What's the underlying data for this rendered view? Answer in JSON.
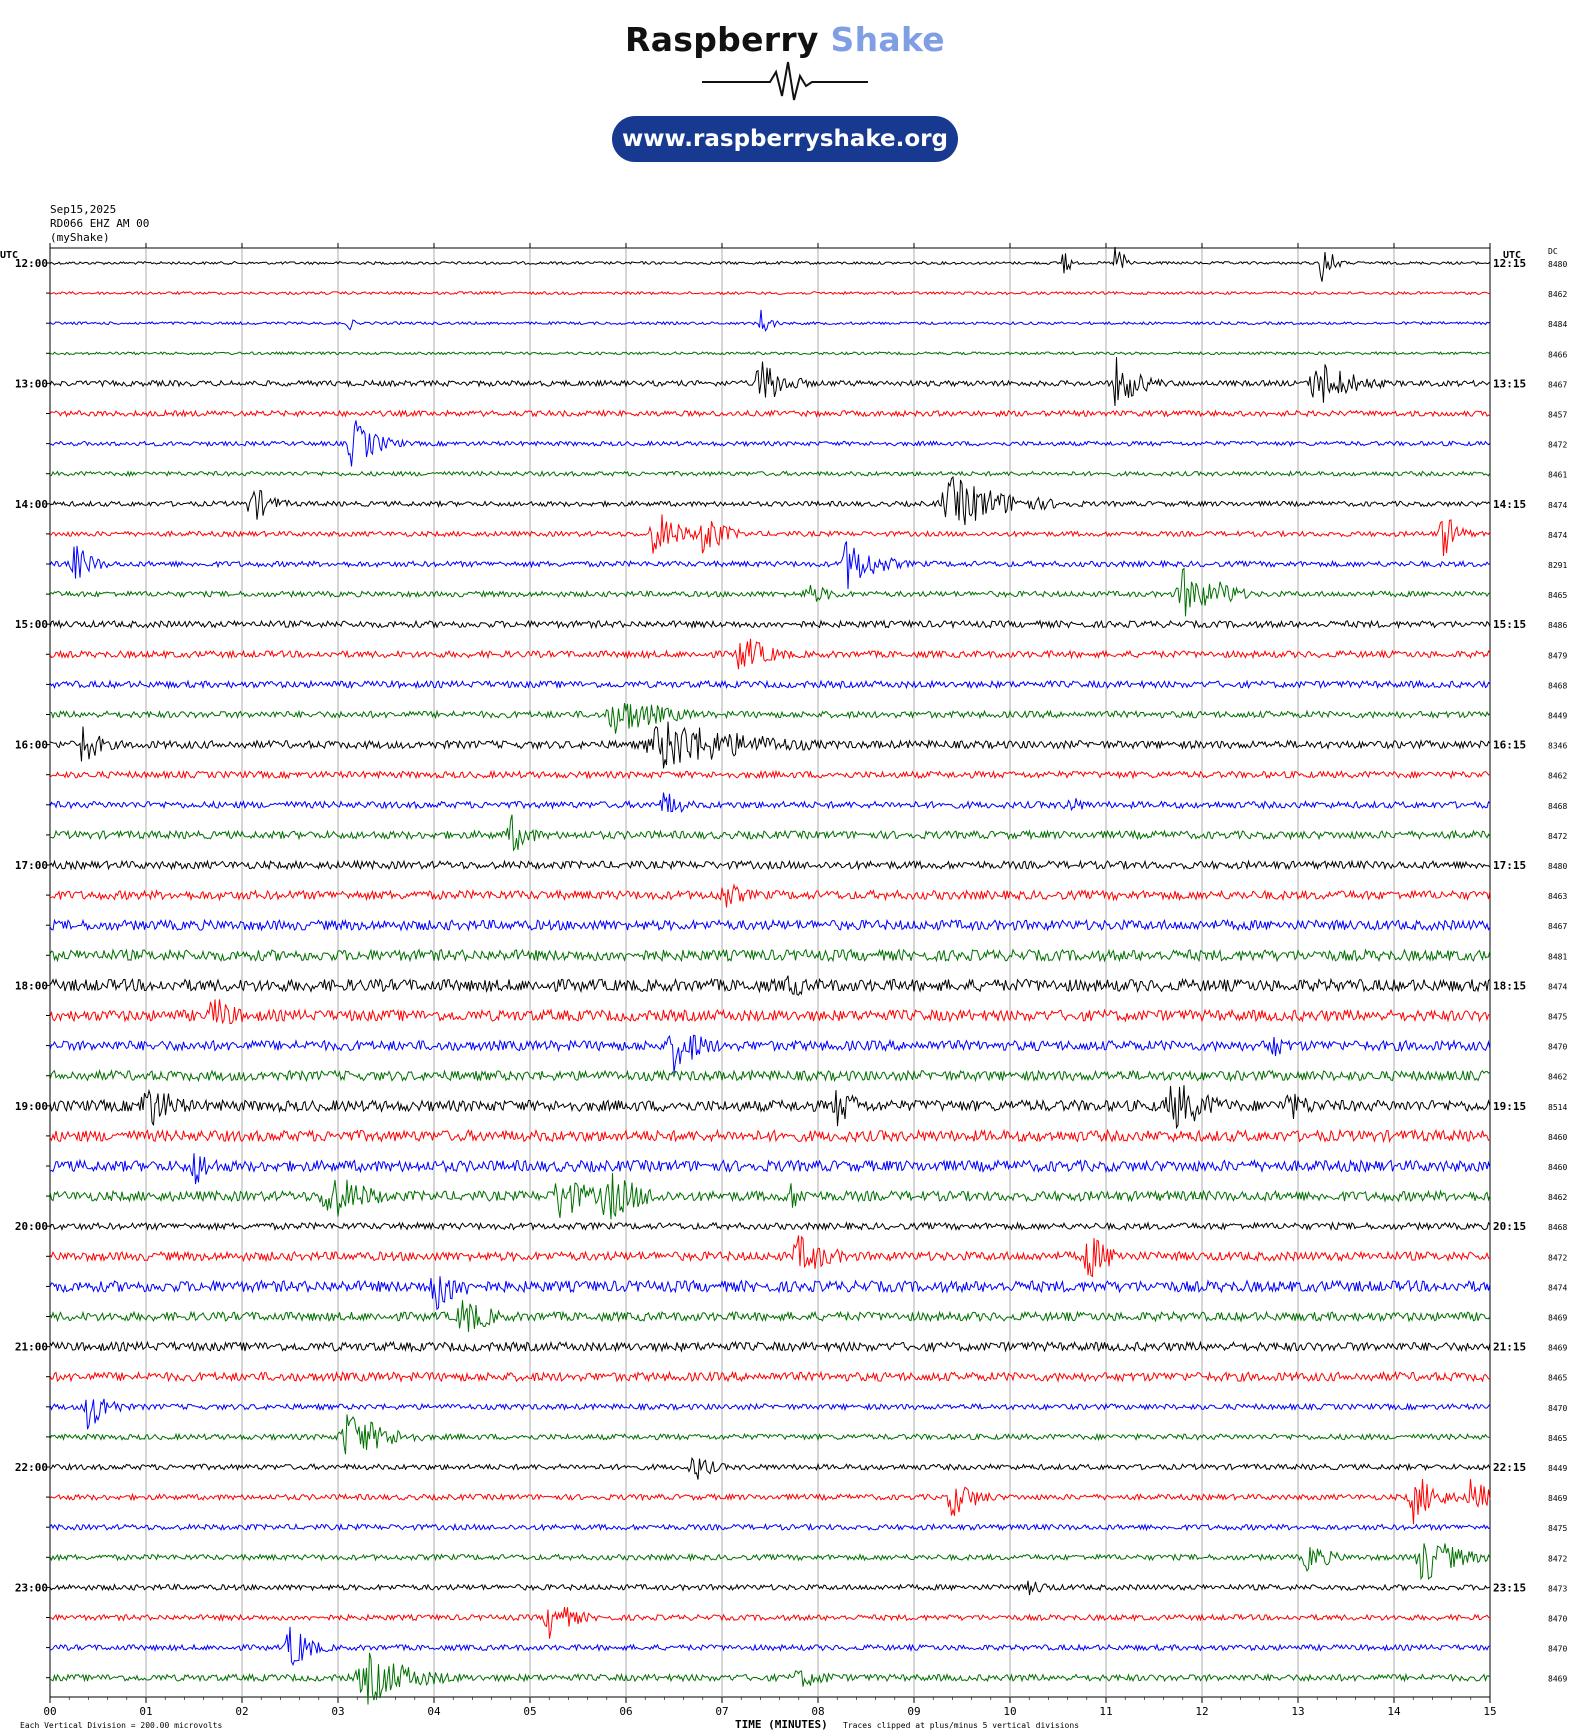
{
  "header": {
    "brand_word_1": "Raspberry",
    "brand_word_2": "Shake",
    "url": "www.raspberryshake.org",
    "brand_color": "#7f9ee3",
    "pill_color": "#17398f"
  },
  "meta": {
    "date": "Sep15,2025",
    "station": "RD066 EHZ AM 00",
    "source": "(myShake)"
  },
  "labels": {
    "left_unit": "UTC",
    "right_unit": "UTC",
    "dc_unit": "DC",
    "footer_left": "Each Vertical Division =  200.00 microvolts",
    "footer_center": "TIME (MINUTES)",
    "footer_right": "Traces clipped at plus/minus 5 vertical divisions"
  },
  "chart_data": {
    "type": "line",
    "xlabel": "TIME (MINUTES)",
    "xlim": [
      0,
      15
    ],
    "x_ticks": [
      "00",
      "01",
      "02",
      "03",
      "04",
      "05",
      "06",
      "07",
      "08",
      "09",
      "10",
      "11",
      "12",
      "13",
      "14",
      "15"
    ],
    "row_minutes": 15,
    "trace_colors": [
      "#000000",
      "#ff0000",
      "#0000ff",
      "#007000"
    ],
    "grid": true,
    "hour_labels_left": [
      "12:00",
      "13:00",
      "14:00",
      "15:00",
      "16:00",
      "17:00",
      "18:00",
      "19:00",
      "20:00",
      "21:00",
      "22:00",
      "23:00"
    ],
    "hour_labels_right": [
      "12:15",
      "13:15",
      "14:15",
      "15:15",
      "16:15",
      "17:15",
      "18:15",
      "19:15",
      "20:15",
      "21:15",
      "22:15",
      "23:15"
    ],
    "dc_offsets": [
      8480,
      8462,
      8484,
      8466,
      8467,
      8457,
      8472,
      8461,
      8474,
      8474,
      8291,
      8465,
      8486,
      8479,
      8468,
      8449,
      8346,
      8462,
      8468,
      8472,
      8480,
      8463,
      8467,
      8481,
      8474,
      8475,
      8470,
      8462,
      8514,
      8460,
      8460,
      8462,
      8468,
      8472,
      8474,
      8469,
      8469,
      8465,
      8470,
      8465,
      8449,
      8469,
      8475,
      8472,
      8473,
      8470,
      8470,
      8469
    ],
    "noise_level": [
      0.25,
      0.25,
      0.25,
      0.25,
      0.5,
      0.5,
      0.4,
      0.4,
      0.45,
      0.45,
      0.5,
      0.5,
      0.6,
      0.6,
      0.6,
      0.6,
      0.7,
      0.6,
      0.6,
      0.7,
      0.7,
      0.8,
      0.9,
      1.0,
      1.1,
      1.0,
      0.9,
      0.9,
      1.0,
      1.0,
      1.0,
      0.9,
      0.6,
      0.8,
      1.0,
      0.8,
      0.8,
      0.8,
      0.5,
      0.5,
      0.5,
      0.5,
      0.5,
      0.5,
      0.5,
      0.5,
      0.5,
      0.6
    ],
    "events": [
      {
        "row": 0,
        "minute": 10.55,
        "amplitude": 8,
        "duration": 0.04
      },
      {
        "row": 0,
        "minute": 11.1,
        "amplitude": 5,
        "duration": 0.08
      },
      {
        "row": 0,
        "minute": 13.25,
        "amplitude": 5,
        "duration": 0.1
      },
      {
        "row": 2,
        "minute": 7.4,
        "amplitude": 3,
        "duration": 0.1
      },
      {
        "row": 2,
        "minute": 3.1,
        "amplitude": 2,
        "duration": 0.05
      },
      {
        "row": 4,
        "minute": 7.4,
        "amplitude": 5,
        "duration": 0.25
      },
      {
        "row": 4,
        "minute": 11.1,
        "amplitude": 5,
        "duration": 0.25
      },
      {
        "row": 4,
        "minute": 13.2,
        "amplitude": 5,
        "duration": 0.35
      },
      {
        "row": 6,
        "minute": 3.15,
        "amplitude": 5,
        "duration": 0.25
      },
      {
        "row": 8,
        "minute": 2.1,
        "amplitude": 4,
        "duration": 0.2
      },
      {
        "row": 8,
        "minute": 9.4,
        "amplitude": 5,
        "duration": 0.6
      },
      {
        "row": 9,
        "minute": 6.3,
        "amplitude": 5,
        "duration": 0.25
      },
      {
        "row": 9,
        "minute": 6.8,
        "amplitude": 5,
        "duration": 0.2
      },
      {
        "row": 9,
        "minute": 14.5,
        "amplitude": 5,
        "duration": 0.15
      },
      {
        "row": 10,
        "minute": 0.25,
        "amplitude": 4,
        "duration": 0.2
      },
      {
        "row": 10,
        "minute": 8.3,
        "amplitude": 5,
        "duration": 0.3
      },
      {
        "row": 11,
        "minute": 11.8,
        "amplitude": 5,
        "duration": 0.3
      },
      {
        "row": 11,
        "minute": 12.2,
        "amplitude": 3,
        "duration": 0.2
      },
      {
        "row": 11,
        "minute": 7.9,
        "amplitude": 2,
        "duration": 0.3
      },
      {
        "row": 13,
        "minute": 7.2,
        "amplitude": 4,
        "duration": 0.3
      },
      {
        "row": 15,
        "minute": 5.9,
        "amplitude": 4,
        "duration": 0.5
      },
      {
        "row": 16,
        "minute": 0.3,
        "amplitude": 5,
        "duration": 0.2
      },
      {
        "row": 16,
        "minute": 6.4,
        "amplitude": 5,
        "duration": 0.9
      },
      {
        "row": 18,
        "minute": 10.6,
        "amplitude": 2,
        "duration": 0.2
      },
      {
        "row": 18,
        "minute": 6.4,
        "amplitude": 3,
        "duration": 0.2
      },
      {
        "row": 19,
        "minute": 4.8,
        "amplitude": 4,
        "duration": 0.2
      },
      {
        "row": 21,
        "minute": 7.0,
        "amplitude": 3,
        "duration": 0.25
      },
      {
        "row": 24,
        "minute": 7.7,
        "amplitude": 3,
        "duration": 0.2
      },
      {
        "row": 25,
        "minute": 1.7,
        "amplitude": 4,
        "duration": 0.25
      },
      {
        "row": 26,
        "minute": 6.5,
        "amplitude": 5,
        "duration": 0.3
      },
      {
        "row": 26,
        "minute": 12.7,
        "amplitude": 3,
        "duration": 0.2
      },
      {
        "row": 28,
        "minute": 1.0,
        "amplitude": 5,
        "duration": 0.3
      },
      {
        "row": 28,
        "minute": 8.2,
        "amplitude": 4,
        "duration": 0.25
      },
      {
        "row": 28,
        "minute": 11.7,
        "amplitude": 5,
        "duration": 0.4
      },
      {
        "row": 28,
        "minute": 12.9,
        "amplitude": 3,
        "duration": 0.3
      },
      {
        "row": 30,
        "minute": 1.5,
        "amplitude": 4,
        "duration": 0.2
      },
      {
        "row": 31,
        "minute": 2.9,
        "amplitude": 5,
        "duration": 0.4
      },
      {
        "row": 31,
        "minute": 5.3,
        "amplitude": 5,
        "duration": 0.3
      },
      {
        "row": 31,
        "minute": 5.8,
        "amplitude": 5,
        "duration": 0.4
      },
      {
        "row": 31,
        "minute": 7.7,
        "amplitude": 3,
        "duration": 0.2
      },
      {
        "row": 33,
        "minute": 7.8,
        "amplitude": 4,
        "duration": 0.35
      },
      {
        "row": 33,
        "minute": 10.8,
        "amplitude": 5,
        "duration": 0.25
      },
      {
        "row": 34,
        "minute": 4.0,
        "amplitude": 5,
        "duration": 0.3
      },
      {
        "row": 35,
        "minute": 4.3,
        "amplitude": 4,
        "duration": 0.3
      },
      {
        "row": 38,
        "minute": 0.4,
        "amplitude": 5,
        "duration": 0.2
      },
      {
        "row": 39,
        "minute": 3.1,
        "amplitude": 5,
        "duration": 0.4
      },
      {
        "row": 40,
        "minute": 6.7,
        "amplitude": 3,
        "duration": 0.2
      },
      {
        "row": 41,
        "minute": 9.4,
        "amplitude": 4,
        "duration": 0.25
      },
      {
        "row": 41,
        "minute": 14.2,
        "amplitude": 5,
        "duration": 0.25
      },
      {
        "row": 41,
        "minute": 14.8,
        "amplitude": 4,
        "duration": 0.2
      },
      {
        "row": 43,
        "minute": 13.1,
        "amplitude": 3,
        "duration": 0.25
      },
      {
        "row": 43,
        "minute": 14.3,
        "amplitude": 5,
        "duration": 0.35
      },
      {
        "row": 44,
        "minute": 10.2,
        "amplitude": 1.5,
        "duration": 0.3
      },
      {
        "row": 45,
        "minute": 5.2,
        "amplitude": 4,
        "duration": 0.25
      },
      {
        "row": 46,
        "minute": 2.5,
        "amplitude": 5,
        "duration": 0.2
      },
      {
        "row": 47,
        "minute": 3.3,
        "amplitude": 5,
        "duration": 0.5
      },
      {
        "row": 47,
        "minute": 7.8,
        "amplitude": 2,
        "duration": 0.4
      }
    ]
  }
}
